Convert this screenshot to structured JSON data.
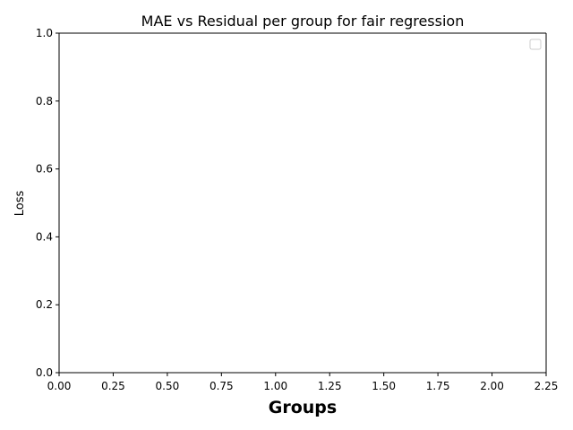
{
  "chart_data": {
    "type": "line",
    "title": "MAE vs Residual per group  for fair regression",
    "xlabel": "Groups",
    "ylabel": "Loss",
    "xlim": [
      0,
      2.25
    ],
    "ylim": [
      0,
      1
    ],
    "xticks": [
      "0.00",
      "0.25",
      "0.50",
      "0.75",
      "1.00",
      "1.25",
      "1.50",
      "1.75",
      "2.00",
      "2.25"
    ],
    "yticks": [
      "0.0",
      "0.2",
      "0.4",
      "0.6",
      "0.8",
      "1.0"
    ],
    "series": [],
    "grid": false,
    "legend": {
      "placement": "top-right",
      "entries": []
    }
  }
}
